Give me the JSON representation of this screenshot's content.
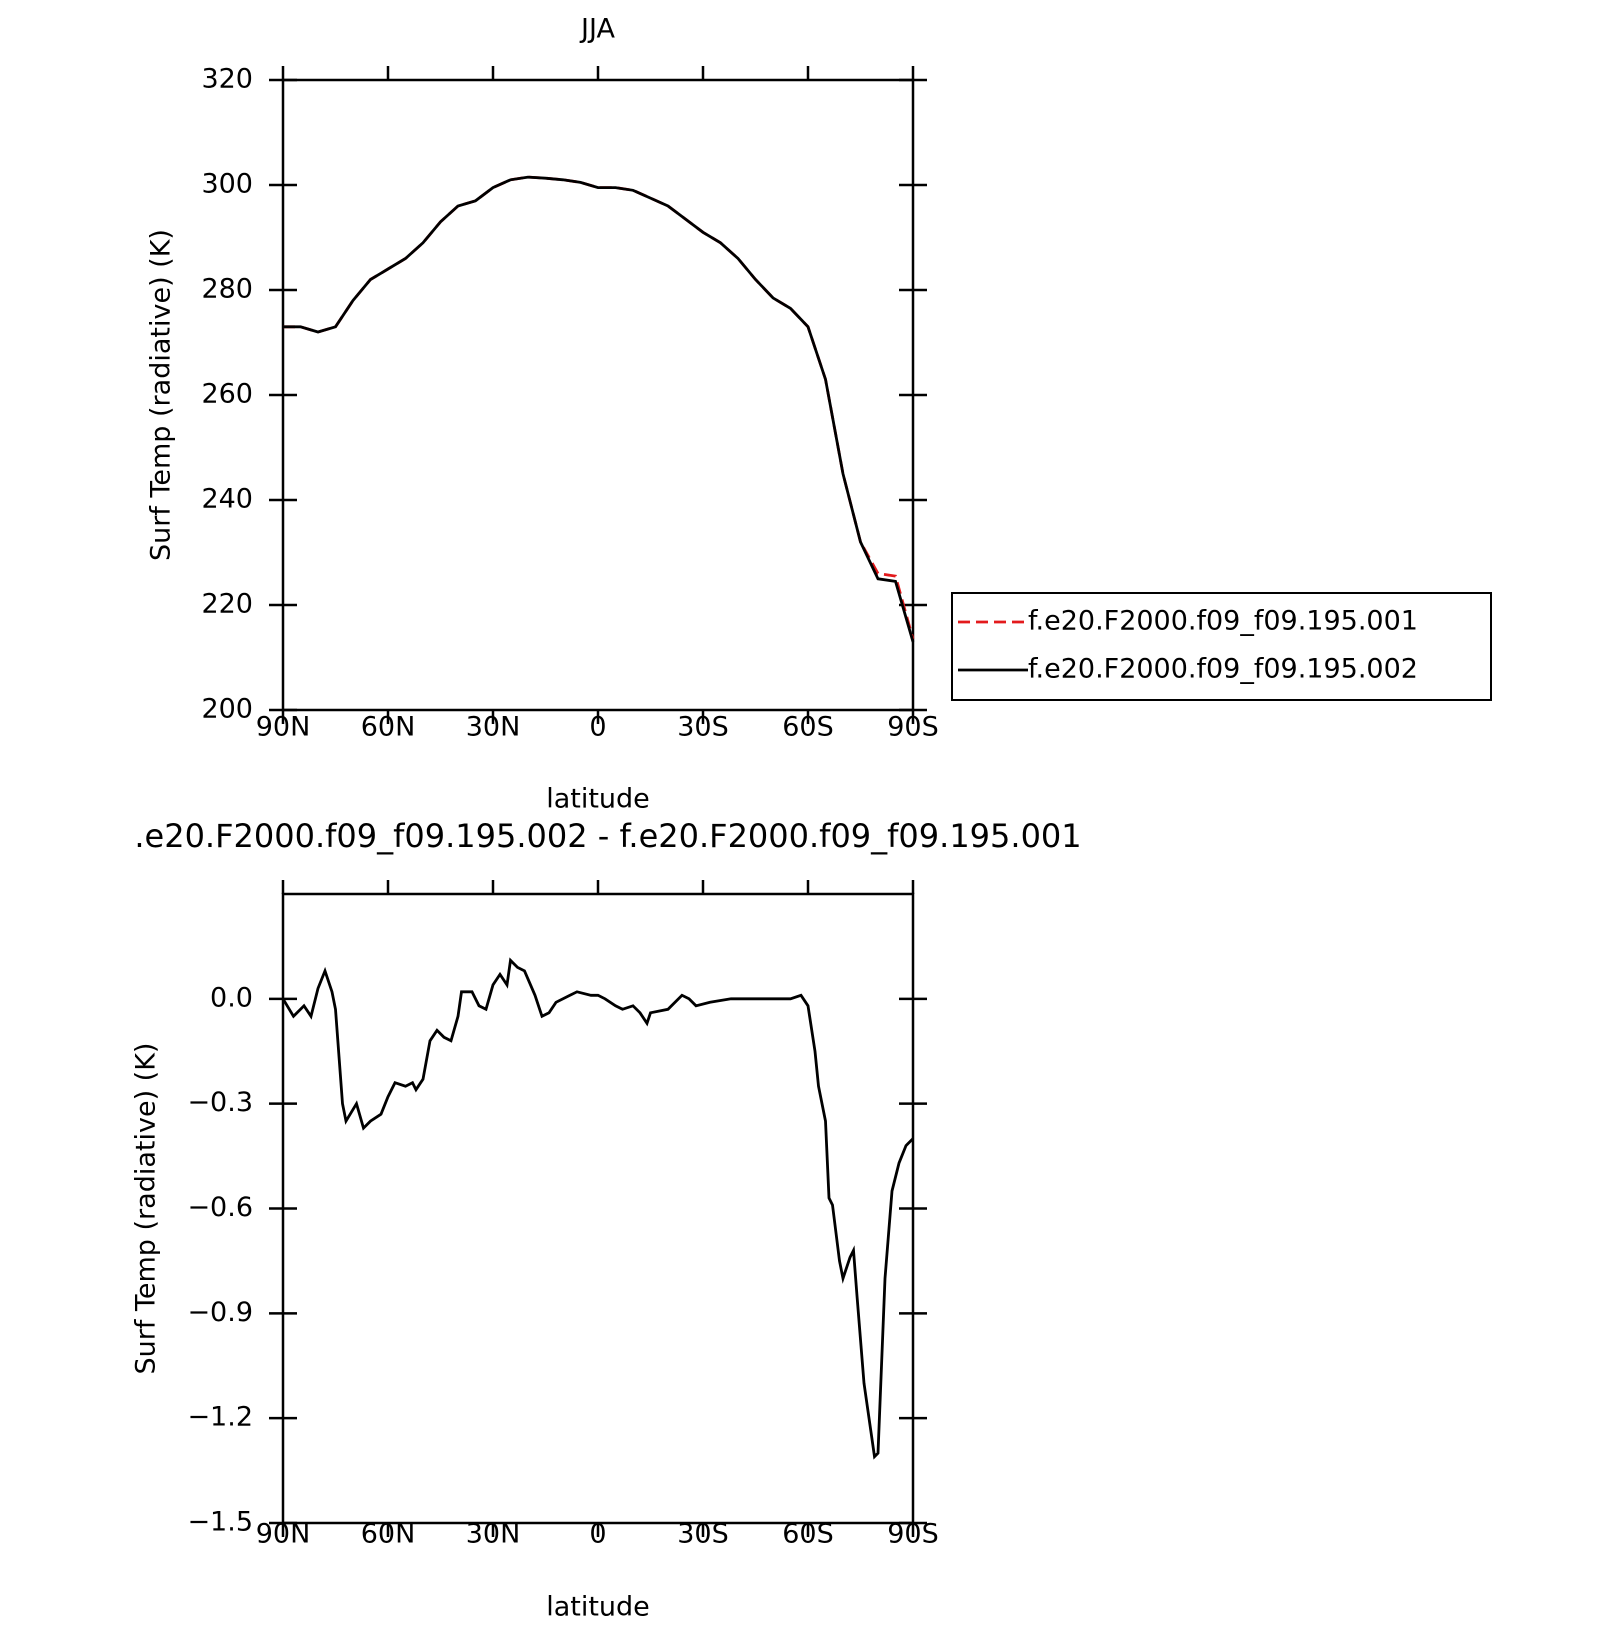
{
  "chart_data": [
    {
      "type": "line",
      "title": "JJA",
      "xlabel": "latitude",
      "ylabel": "Surf Temp (radiative) (K)",
      "x": [
        90,
        85,
        80,
        75,
        70,
        65,
        60,
        55,
        50,
        45,
        40,
        35,
        30,
        25,
        20,
        15,
        10,
        5,
        0,
        -5,
        -10,
        -15,
        -20,
        -25,
        -30,
        -35,
        -40,
        -45,
        -50,
        -55,
        -60,
        -65,
        -70,
        -75,
        -80,
        -85,
        -90
      ],
      "series": [
        {
          "name": "f.e20.F2000.f09_f09.195.001",
          "color": "#e31a1c",
          "dash": true,
          "values": [
            273,
            273,
            272,
            273,
            278,
            282,
            284,
            286,
            289,
            293,
            296,
            297,
            299.5,
            301,
            301.5,
            301.3,
            301,
            300.5,
            299.5,
            299.5,
            299,
            297.5,
            296,
            293.5,
            291,
            289,
            286,
            282,
            278.5,
            276.5,
            273,
            263,
            245,
            232,
            226,
            225.5,
            213.5
          ]
        },
        {
          "name": "f.e20.F2000.f09_f09.195.002",
          "color": "#000000",
          "dash": false,
          "values": [
            273,
            273,
            272,
            273,
            278,
            282,
            284,
            286,
            289,
            293,
            296,
            297,
            299.5,
            301,
            301.5,
            301.3,
            301,
            300.5,
            299.5,
            299.5,
            299,
            297.5,
            296,
            293.5,
            291,
            289,
            286,
            282,
            278.5,
            276.5,
            273,
            263,
            245,
            232,
            225,
            224.5,
            213
          ]
        }
      ],
      "xlim": [
        90,
        -90
      ],
      "xticks": [
        {
          "value": 90,
          "label": "90N"
        },
        {
          "value": 60,
          "label": "60N"
        },
        {
          "value": 30,
          "label": "30N"
        },
        0,
        {
          "value": -30,
          "label": "30S"
        },
        {
          "value": -60,
          "label": "60S"
        },
        {
          "value": -90,
          "label": "90S"
        }
      ],
      "ylim": [
        200,
        320
      ],
      "yticks": [
        200,
        220,
        240,
        260,
        280,
        300,
        320
      ],
      "legend": "right"
    },
    {
      "type": "line",
      "title": ".e20.F2000.f09_f09.195.002 - f.e20.F2000.f09_f09.195.001",
      "xlabel": "latitude",
      "ylabel": "Surf Temp (radiative) (K)",
      "x": [
        90,
        87,
        84,
        82,
        80,
        78,
        76,
        75,
        73,
        72,
        69,
        67,
        65,
        62,
        60,
        58,
        55,
        53,
        52,
        50,
        48,
        46,
        44,
        42,
        40,
        39,
        36,
        34,
        32,
        30,
        28,
        26,
        25,
        23,
        21,
        18,
        16,
        14,
        12,
        8,
        6,
        2,
        0,
        -2,
        -5,
        -7,
        -10,
        -12,
        -14,
        -15,
        -20,
        -24,
        -26,
        -28,
        -32,
        -38,
        -45,
        -50,
        -55,
        -58,
        -60,
        -62,
        -63,
        -65,
        -66,
        -67,
        -69,
        -70,
        -72,
        -73,
        -74,
        -76,
        -78,
        -79,
        -80,
        -82,
        -84,
        -86,
        -88,
        -90
      ],
      "series": [
        {
          "name": "difference",
          "color": "#000000",
          "dash": false,
          "values": [
            0,
            -0.05,
            -0.02,
            -0.05,
            0.03,
            0.08,
            0.02,
            -0.03,
            -0.3,
            -0.35,
            -0.3,
            -0.37,
            -0.35,
            -0.33,
            -0.28,
            -0.24,
            -0.25,
            -0.24,
            -0.26,
            -0.23,
            -0.12,
            -0.09,
            -0.11,
            -0.12,
            -0.05,
            0.02,
            0.02,
            -0.02,
            -0.03,
            0.04,
            0.07,
            0.04,
            0.11,
            0.09,
            0.08,
            0.01,
            -0.05,
            -0.04,
            -0.01,
            0.01,
            0.02,
            0.01,
            0.01,
            0,
            -0.02,
            -0.03,
            -0.02,
            -0.04,
            -0.07,
            -0.04,
            -0.03,
            0.01,
            0,
            -0.02,
            -0.01,
            0,
            0,
            0,
            0,
            0.01,
            -0.02,
            -0.15,
            -0.25,
            -0.35,
            -0.57,
            -0.59,
            -0.75,
            -0.8,
            -0.74,
            -0.72,
            -0.85,
            -1.1,
            -1.24,
            -1.31,
            -1.3,
            -0.8,
            -0.55,
            -0.47,
            -0.42,
            -0.4
          ]
        }
      ],
      "xlim": [
        90,
        -90
      ],
      "xticks": [
        {
          "value": 90,
          "label": "90N"
        },
        {
          "value": 60,
          "label": "60N"
        },
        {
          "value": 30,
          "label": "30N"
        },
        0,
        {
          "value": -30,
          "label": "30S"
        },
        {
          "value": -60,
          "label": "60S"
        },
        {
          "value": -90,
          "label": "90S"
        }
      ],
      "ylim": [
        -1.5,
        0.3
      ],
      "yticks": [
        {
          "value": -1.5,
          "label": "−1.5"
        },
        {
          "value": -1.2,
          "label": "−1.2"
        },
        {
          "value": -0.9,
          "label": "−0.9"
        },
        {
          "value": -0.6,
          "label": "−0.6"
        },
        {
          "value": -0.3,
          "label": "−0.3"
        },
        {
          "value": 0,
          "label": "0.0"
        }
      ]
    }
  ]
}
